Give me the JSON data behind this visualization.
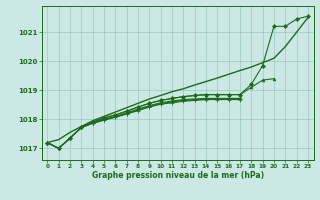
{
  "xlabel": "Graphe pression niveau de la mer (hPa)",
  "hours": [
    0,
    1,
    2,
    3,
    4,
    5,
    6,
    7,
    8,
    9,
    10,
    11,
    12,
    13,
    14,
    15,
    16,
    17,
    18,
    19,
    20,
    21,
    22,
    23
  ],
  "line_straight": [
    1017.2,
    1017.3,
    1017.55,
    1017.75,
    1017.95,
    1018.1,
    1018.25,
    1018.4,
    1018.55,
    1018.7,
    1018.82,
    1018.95,
    1019.05,
    1019.18,
    1019.3,
    1019.42,
    1019.55,
    1019.68,
    1019.8,
    1019.95,
    1020.1,
    1020.5,
    1021.0,
    1021.5
  ],
  "line_diamond": [
    1017.2,
    1017.0,
    1017.35,
    1017.72,
    1017.9,
    1018.05,
    1018.15,
    1018.28,
    1018.42,
    1018.55,
    1018.65,
    1018.72,
    1018.78,
    1018.82,
    1018.85,
    1018.85,
    1018.85,
    1018.85,
    1019.2,
    1019.85,
    1021.2,
    1021.2,
    1021.45,
    1021.55
  ],
  "line_triangle": [
    1017.2,
    1017.0,
    1017.35,
    1017.72,
    1017.9,
    1018.05,
    1018.15,
    1018.28,
    1018.42,
    1018.55,
    1018.65,
    1018.72,
    1018.78,
    1018.82,
    1018.85,
    1018.85,
    1018.85,
    1018.85,
    1019.1,
    1019.35,
    1019.4,
    null,
    null,
    null
  ],
  "line_cross1": [
    1017.2,
    1017.0,
    1017.35,
    1017.72,
    1017.88,
    1018.0,
    1018.1,
    1018.22,
    1018.35,
    1018.47,
    1018.57,
    1018.63,
    1018.68,
    1018.7,
    1018.72,
    1018.72,
    1018.72,
    1018.72,
    null,
    null,
    null,
    null,
    null,
    null
  ],
  "line_cross2": [
    1017.2,
    1017.0,
    1017.35,
    1017.72,
    1017.87,
    1017.98,
    1018.08,
    1018.2,
    1018.32,
    1018.44,
    1018.54,
    1018.6,
    1018.65,
    1018.68,
    1018.7,
    1018.7,
    1018.7,
    1018.7,
    null,
    null,
    null,
    null,
    null,
    null
  ],
  "line_cross3": [
    1017.2,
    1017.0,
    1017.35,
    1017.72,
    1017.86,
    1017.97,
    1018.07,
    1018.18,
    1018.3,
    1018.42,
    1018.52,
    1018.57,
    1018.62,
    1018.65,
    1018.68,
    1018.68,
    1018.68,
    1018.68,
    null,
    null,
    null,
    null,
    null,
    null
  ],
  "ylim": [
    1016.6,
    1021.9
  ],
  "yticks": [
    1017,
    1018,
    1019,
    1020,
    1021
  ],
  "bg_color": "#cce8e4",
  "line_color": "#1a6b1a",
  "grid_color": "#9ec8c2",
  "label_color": "#1a6b1a",
  "figsize": [
    3.2,
    2.0
  ],
  "dpi": 100
}
